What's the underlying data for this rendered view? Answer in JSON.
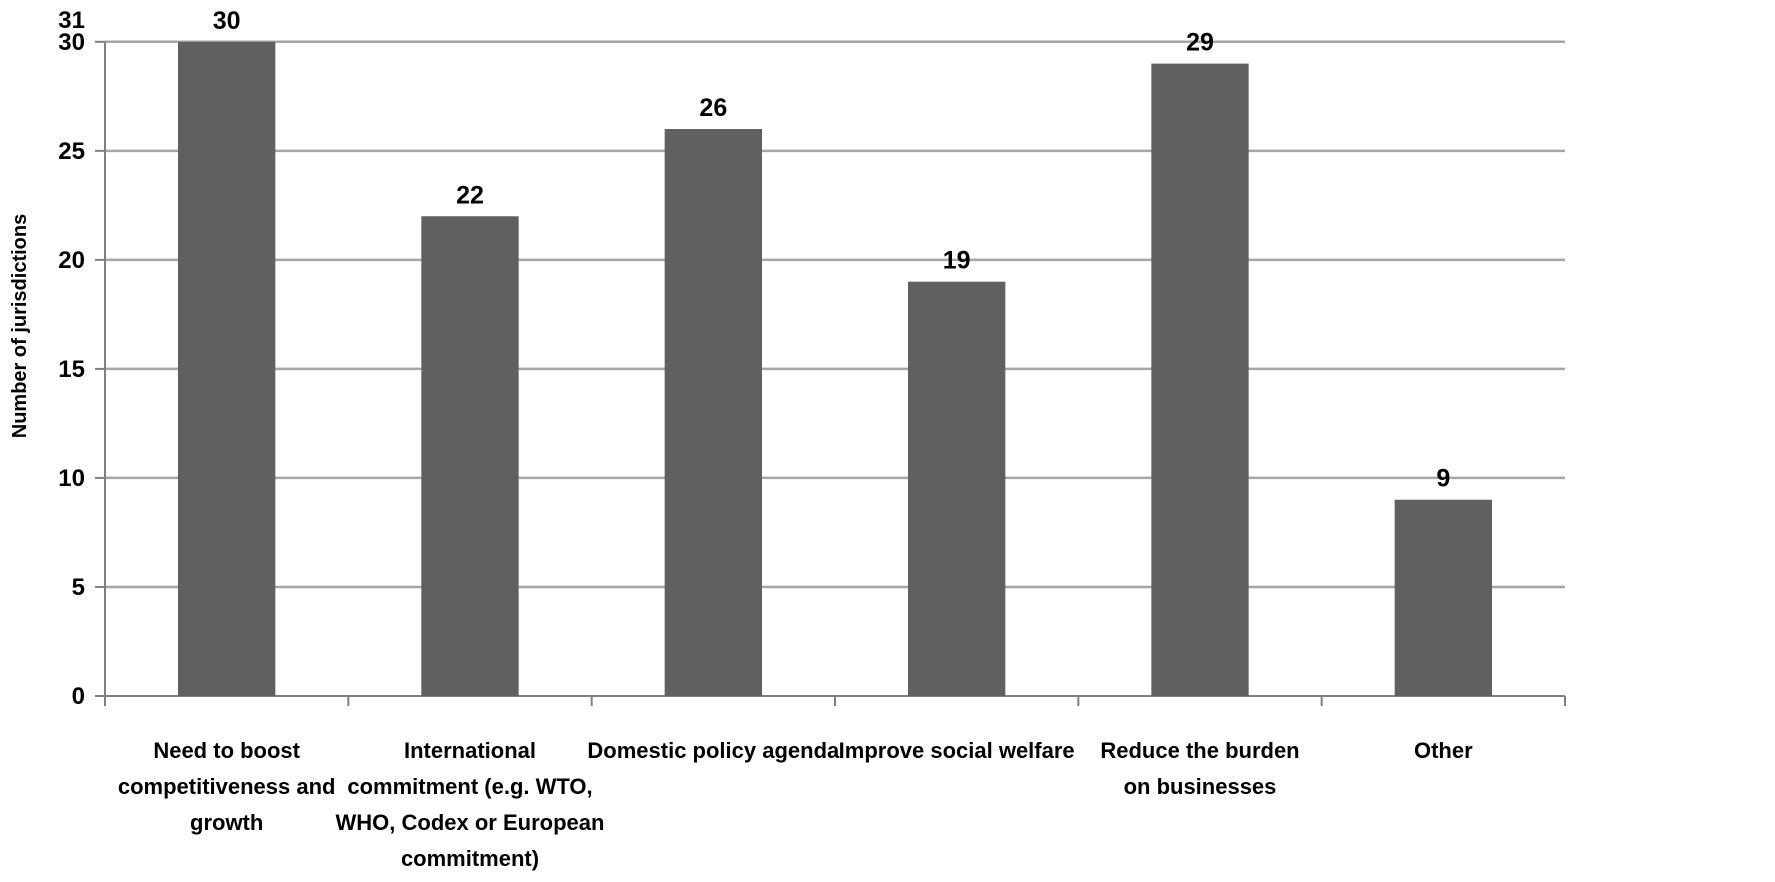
{
  "chart_data": {
    "type": "bar",
    "title": "",
    "xlabel": "",
    "ylabel": "Number of jurisdictions",
    "ylim": [
      0,
      31
    ],
    "yticks": [
      0,
      5,
      10,
      15,
      20,
      25,
      30,
      31
    ],
    "grid": true,
    "legend": "none",
    "bar_color": "#606060",
    "categories": [
      [
        "Need to boost",
        "competitiveness and",
        "growth"
      ],
      [
        "International",
        "commitment (e.g. WTO,",
        "WHO, Codex or European",
        "commitment)"
      ],
      [
        "Domestic policy agenda"
      ],
      [
        "Improve social welfare"
      ],
      [
        "Reduce the burden",
        "on businesses"
      ],
      [
        "Other"
      ]
    ],
    "values": [
      30,
      22,
      26,
      19,
      29,
      9
    ]
  }
}
